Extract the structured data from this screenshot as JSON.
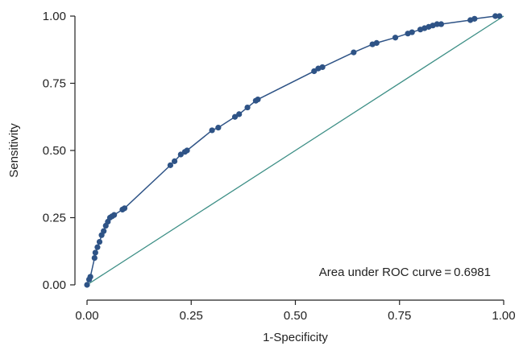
{
  "chart_data": {
    "type": "line",
    "title": "",
    "xlabel": "1-Specificity",
    "ylabel": "Sensitivity",
    "xlim": [
      0,
      1
    ],
    "ylim": [
      0,
      1
    ],
    "x_ticks": [
      "0.00",
      "0.25",
      "0.50",
      "0.75",
      "1.00"
    ],
    "y_ticks": [
      "0.00",
      "0.25",
      "0.50",
      "0.75",
      "1.00"
    ],
    "grid": false,
    "annotation": "Area under ROC curve = 0.6981",
    "colors": {
      "roc_curve": "#2e5386",
      "reference_line": "#3d8f86",
      "axis": "#222222"
    },
    "series": [
      {
        "role": "roc_curve",
        "marker": "dot",
        "x": [
          0,
          0.005,
          0.008,
          0.018,
          0.02,
          0.025,
          0.03,
          0.035,
          0.04,
          0.045,
          0.05,
          0.055,
          0.06,
          0.065,
          0.085,
          0.09,
          0.2,
          0.21,
          0.225,
          0.235,
          0.24,
          0.3,
          0.315,
          0.355,
          0.365,
          0.385,
          0.405,
          0.41,
          0.545,
          0.555,
          0.565,
          0.64,
          0.685,
          0.695,
          0.74,
          0.77,
          0.78,
          0.8,
          0.81,
          0.82,
          0.83,
          0.84,
          0.85,
          0.92,
          0.93,
          0.98,
          0.99
        ],
        "y": [
          0,
          0.02,
          0.03,
          0.1,
          0.12,
          0.14,
          0.16,
          0.185,
          0.2,
          0.22,
          0.235,
          0.25,
          0.255,
          0.26,
          0.28,
          0.285,
          0.445,
          0.46,
          0.485,
          0.495,
          0.5,
          0.575,
          0.585,
          0.625,
          0.635,
          0.66,
          0.685,
          0.69,
          0.795,
          0.805,
          0.81,
          0.865,
          0.895,
          0.9,
          0.92,
          0.935,
          0.94,
          0.95,
          0.955,
          0.96,
          0.965,
          0.97,
          0.97,
          0.985,
          0.99,
          1.0,
          1.0
        ]
      },
      {
        "role": "reference_line",
        "marker": "none",
        "x": [
          0,
          1
        ],
        "y": [
          0,
          1
        ]
      }
    ]
  }
}
